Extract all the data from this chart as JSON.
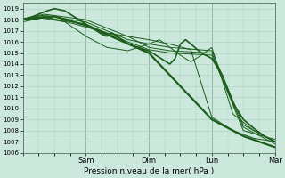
{
  "xlabel": "Pression niveau de la mer( hPa )",
  "ylim": [
    1006,
    1019.5
  ],
  "yticks": [
    1006,
    1007,
    1008,
    1009,
    1010,
    1011,
    1012,
    1013,
    1014,
    1015,
    1016,
    1017,
    1018,
    1019
  ],
  "background_color": "#cce8dc",
  "grid_color": "#aad4c4",
  "line_color": "#1a5c1a",
  "fig_bg": "#cce8dc",
  "xlim": [
    0,
    96
  ],
  "day_ticks": [
    0,
    24,
    48,
    72,
    96
  ],
  "day_labels": [
    "",
    "Sam",
    "Dim",
    "Lun",
    "Mar"
  ]
}
